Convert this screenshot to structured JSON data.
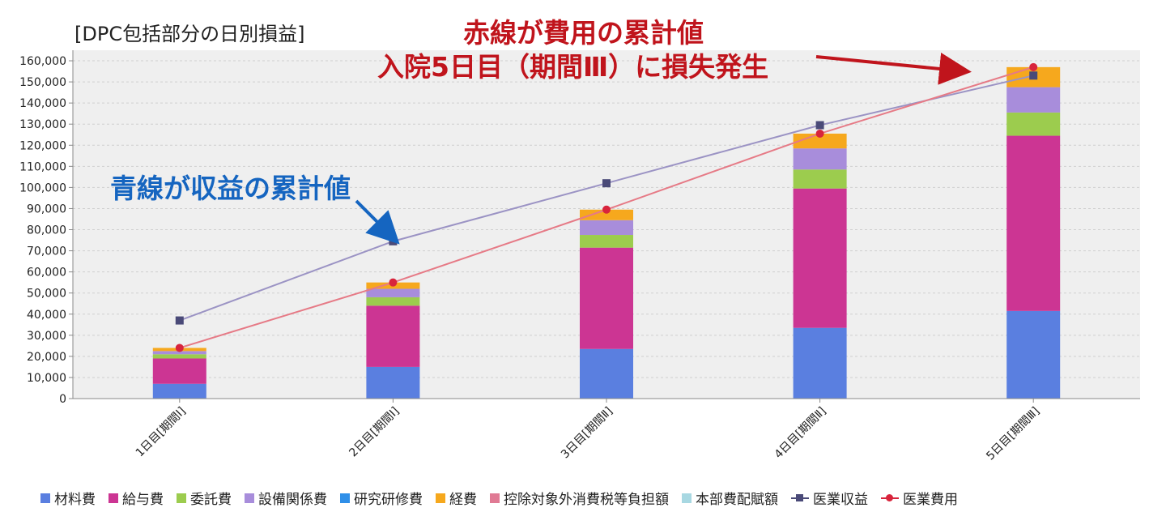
{
  "header": {
    "title": "[DPC包括部分の日別損益]",
    "annotation_red_line1": "赤線が費用の累計値",
    "annotation_red_line2": "入院5日目（期間Ⅲ）に損失発生",
    "annotation_blue": "青線が収益の累計値"
  },
  "colors": {
    "annotation_red": "#c0141c",
    "annotation_blue": "#1565c0",
    "plot_bg": "#efefef"
  },
  "chart_data": {
    "type": "bar",
    "stacked": true,
    "title": "[DPC包括部分の日別損益]",
    "categories": [
      "1日目[期間Ⅰ]",
      "2日目[期間Ⅰ]",
      "3日目[期間Ⅱ]",
      "4日目[期間Ⅱ]",
      "5日目[期間Ⅲ]"
    ],
    "ylim": [
      0,
      165000
    ],
    "yticks": [
      0,
      10000,
      20000,
      30000,
      40000,
      50000,
      60000,
      70000,
      80000,
      90000,
      100000,
      110000,
      120000,
      130000,
      140000,
      150000,
      160000
    ],
    "ytick_labels": [
      "0",
      "10,000",
      "20,000",
      "30,000",
      "40,000",
      "50,000",
      "60,000",
      "70,000",
      "80,000",
      "90,000",
      "100,000",
      "110,000",
      "120,000",
      "130,000",
      "140,000",
      "150,000",
      "160,000"
    ],
    "grid": true,
    "legend_position": "bottom",
    "series": [
      {
        "name": "材料費",
        "color": "#5a7fe0",
        "values": [
          7000,
          15000,
          23500,
          33500,
          41500
        ]
      },
      {
        "name": "給与費",
        "color": "#cc3593",
        "values": [
          12000,
          29000,
          48000,
          66000,
          83000
        ]
      },
      {
        "name": "委託費",
        "color": "#9ccc4e",
        "values": [
          2000,
          4000,
          6000,
          9000,
          11000
        ]
      },
      {
        "name": "設備関係費",
        "color": "#a88ddb",
        "values": [
          1500,
          4000,
          7000,
          10000,
          12000
        ]
      },
      {
        "name": "研究研修費",
        "color": "#2f8fe8",
        "values": [
          0,
          0,
          0,
          0,
          0
        ]
      },
      {
        "name": "経費",
        "color": "#f6a81d",
        "values": [
          1500,
          3000,
          5000,
          7000,
          9500
        ]
      },
      {
        "name": "控除対象外消費税等負担額",
        "color": "#e07a94",
        "values": [
          0,
          0,
          0,
          0,
          0
        ]
      },
      {
        "name": "本部費配賦額",
        "color": "#a8d8e2",
        "values": [
          0,
          0,
          0,
          0,
          0
        ]
      }
    ],
    "lines": [
      {
        "name": "医業収益",
        "color": "#4a4a78",
        "line_color": "#9b93c4",
        "marker": "square",
        "values": [
          37000,
          74500,
          102000,
          129500,
          153000
        ]
      },
      {
        "name": "医業費用",
        "color": "#d8243c",
        "line_color": "#e67a86",
        "marker": "circle",
        "values": [
          24000,
          55000,
          89500,
          125500,
          157000
        ]
      }
    ]
  }
}
